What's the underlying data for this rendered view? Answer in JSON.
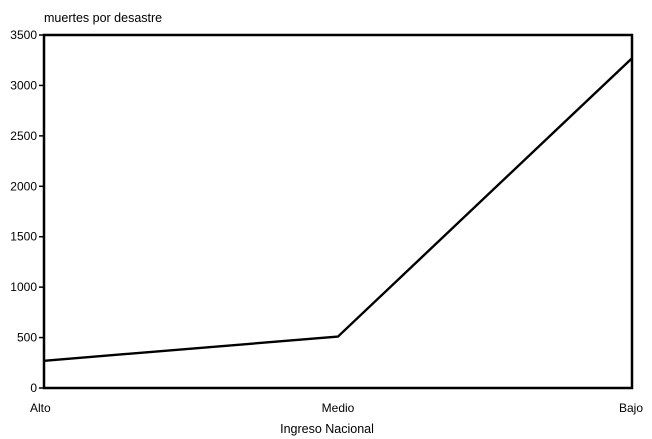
{
  "chart_data": {
    "type": "line",
    "title": "",
    "xlabel": "Ingreso Nacional",
    "ylabel": "muertes por desastre",
    "categories": [
      "Alto",
      "Medio",
      "Bajo"
    ],
    "series": [
      {
        "values": [
          270,
          510,
          3270
        ]
      }
    ],
    "ylim": [
      0,
      3500
    ],
    "yticks": [
      "0",
      "500",
      "1000",
      "1500",
      "2000",
      "2500",
      "3000",
      "3500"
    ],
    "grid": false,
    "legend": "none"
  }
}
